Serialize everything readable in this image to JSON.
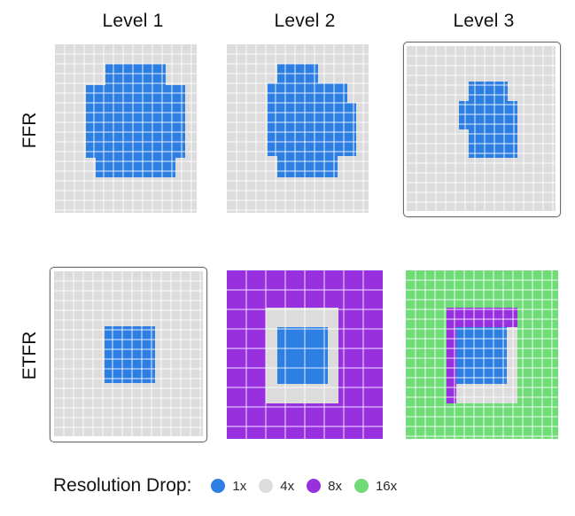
{
  "columns": [
    "Level 1",
    "Level 2",
    "Level 3"
  ],
  "rows": [
    "FFR",
    "ETFR"
  ],
  "legend": {
    "title": "Resolution Drop:",
    "items": [
      {
        "label": "1x",
        "color": "#2e7fe3"
      },
      {
        "label": "4x",
        "color": "#dcdcdc"
      },
      {
        "label": "8x",
        "color": "#9830e0"
      },
      {
        "label": "16x",
        "color": "#6fdc78"
      }
    ]
  },
  "colors": {
    "full_res": "#2e7fe3",
    "res_4x": "#dcdcdc",
    "res_8x": "#9830e0",
    "res_16x": "#6fdc78",
    "grid_line": "#ffffff"
  },
  "selected_panels": [
    "ffr-level-3",
    "etfr-level-1"
  ]
}
